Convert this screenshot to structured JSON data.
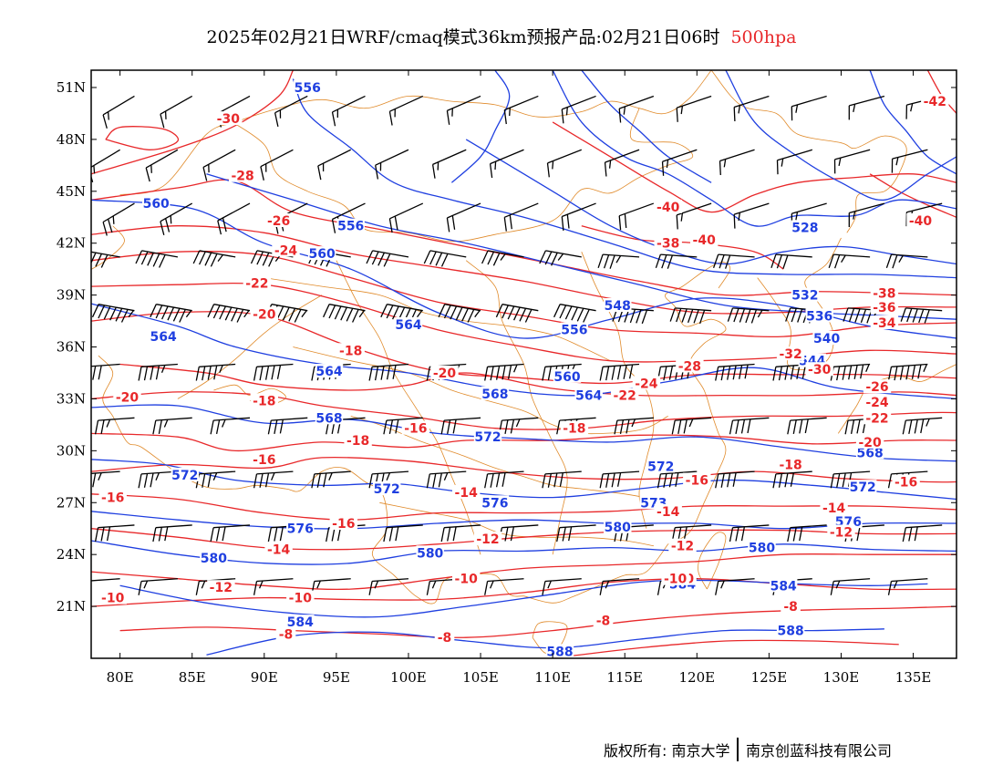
{
  "title": {
    "text": "2025年02月21日WRF/cmaq模式36km预报产品:02月21日06时",
    "level": "500hpa",
    "level_color": "#e8282a"
  },
  "axes": {
    "lat_labels": [
      "51N",
      "48N",
      "45N",
      "42N",
      "39N",
      "36N",
      "33N",
      "30N",
      "27N",
      "24N",
      "21N"
    ],
    "lat_values": [
      51,
      48,
      45,
      42,
      39,
      36,
      33,
      30,
      27,
      24,
      21
    ],
    "lon_labels": [
      "80E",
      "85E",
      "90E",
      "95E",
      "100E",
      "105E",
      "110E",
      "115E",
      "120E",
      "125E",
      "130E",
      "135E"
    ],
    "lon_values": [
      80,
      85,
      90,
      95,
      100,
      105,
      110,
      115,
      120,
      125,
      130,
      135
    ],
    "lon_range": [
      78,
      138
    ],
    "lat_range": [
      18,
      52
    ]
  },
  "colors": {
    "height_contour": "#1f3fe0",
    "temperature_contour": "#e8282a",
    "coastline_border": "#e08a2a",
    "wind_barb": "#000000"
  },
  "height_labels": [
    {
      "text": "556",
      "lon": 93,
      "lat": 51
    },
    {
      "text": "560",
      "lon": 82.5,
      "lat": 44.3
    },
    {
      "text": "556",
      "lon": 96,
      "lat": 43
    },
    {
      "text": "560",
      "lon": 94,
      "lat": 41.4
    },
    {
      "text": "548",
      "lon": 114.5,
      "lat": 38.4
    },
    {
      "text": "532",
      "lon": 127.5,
      "lat": 39
    },
    {
      "text": "536",
      "lon": 128.5,
      "lat": 37.8
    },
    {
      "text": "528",
      "lon": 127.5,
      "lat": 42.9
    },
    {
      "text": "540",
      "lon": 129,
      "lat": 36.5
    },
    {
      "text": "544",
      "lon": 128,
      "lat": 35.2
    },
    {
      "text": "564",
      "lon": 100,
      "lat": 37.3
    },
    {
      "text": "556",
      "lon": 111.5,
      "lat": 37
    },
    {
      "text": "564",
      "lon": 83,
      "lat": 36.6
    },
    {
      "text": "560",
      "lon": 111,
      "lat": 34.3
    },
    {
      "text": "564",
      "lon": 94.5,
      "lat": 34.6
    },
    {
      "text": "568",
      "lon": 106,
      "lat": 33.3
    },
    {
      "text": "564",
      "lon": 112.5,
      "lat": 33.2
    },
    {
      "text": "568",
      "lon": 94.5,
      "lat": 31.9
    },
    {
      "text": "572",
      "lon": 105.5,
      "lat": 30.8
    },
    {
      "text": "572",
      "lon": 84.5,
      "lat": 28.6
    },
    {
      "text": "572",
      "lon": 98.5,
      "lat": 27.8
    },
    {
      "text": "576",
      "lon": 106,
      "lat": 27
    },
    {
      "text": "572",
      "lon": 117.5,
      "lat": 29.1
    },
    {
      "text": "568",
      "lon": 132,
      "lat": 29.9
    },
    {
      "text": "572",
      "lon": 131.5,
      "lat": 27.9
    },
    {
      "text": "573",
      "lon": 117,
      "lat": 27
    },
    {
      "text": "576",
      "lon": 130.5,
      "lat": 25.9
    },
    {
      "text": "576",
      "lon": 92.5,
      "lat": 25.5
    },
    {
      "text": "580",
      "lon": 114.5,
      "lat": 25.6
    },
    {
      "text": "580",
      "lon": 86.5,
      "lat": 23.8
    },
    {
      "text": "580",
      "lon": 101.5,
      "lat": 24.1
    },
    {
      "text": "580",
      "lon": 124.5,
      "lat": 24.4
    },
    {
      "text": "584",
      "lon": 119,
      "lat": 22.3
    },
    {
      "text": "584",
      "lon": 126,
      "lat": 22.2
    },
    {
      "text": "584",
      "lon": 92.5,
      "lat": 20.1
    },
    {
      "text": "588",
      "lon": 110.5,
      "lat": 18.4
    },
    {
      "text": "588",
      "lon": 126.5,
      "lat": 19.6
    }
  ],
  "temp_labels": [
    {
      "text": "-30",
      "lon": 87.5,
      "lat": 49.2
    },
    {
      "text": "-28",
      "lon": 88.5,
      "lat": 45.9
    },
    {
      "text": "-26",
      "lon": 91,
      "lat": 43.3
    },
    {
      "text": "-24",
      "lon": 91.5,
      "lat": 41.6
    },
    {
      "text": "-22",
      "lon": 89.5,
      "lat": 39.7
    },
    {
      "text": "-20",
      "lon": 90,
      "lat": 37.9
    },
    {
      "text": "-20",
      "lon": 80.5,
      "lat": 33.1
    },
    {
      "text": "-18",
      "lon": 96,
      "lat": 35.8
    },
    {
      "text": "-18",
      "lon": 90,
      "lat": 32.9
    },
    {
      "text": "-18",
      "lon": 96.5,
      "lat": 30.6
    },
    {
      "text": "-16",
      "lon": 90,
      "lat": 29.5
    },
    {
      "text": "-16",
      "lon": 100.5,
      "lat": 31.3
    },
    {
      "text": "-16",
      "lon": 79.5,
      "lat": 27.3
    },
    {
      "text": "-16",
      "lon": 95.5,
      "lat": 25.8
    },
    {
      "text": "-14",
      "lon": 104,
      "lat": 27.6
    },
    {
      "text": "-14",
      "lon": 91,
      "lat": 24.3
    },
    {
      "text": "-12",
      "lon": 87,
      "lat": 22.1
    },
    {
      "text": "-12",
      "lon": 105.5,
      "lat": 24.9
    },
    {
      "text": "-10",
      "lon": 79.5,
      "lat": 21.5
    },
    {
      "text": "-10",
      "lon": 92.5,
      "lat": 21.5
    },
    {
      "text": "-10",
      "lon": 104,
      "lat": 22.6
    },
    {
      "text": "-10",
      "lon": 119,
      "lat": 22.6
    },
    {
      "text": "-8",
      "lon": 91.5,
      "lat": 19.4
    },
    {
      "text": "-8",
      "lon": 102.5,
      "lat": 19.2
    },
    {
      "text": "-8",
      "lon": 113.5,
      "lat": 20.2
    },
    {
      "text": "-10",
      "lon": 118.5,
      "lat": 22.6
    },
    {
      "text": "-20",
      "lon": 102.5,
      "lat": 34.5
    },
    {
      "text": "-18",
      "lon": 111.5,
      "lat": 31.3
    },
    {
      "text": "-16",
      "lon": 120,
      "lat": 28.3
    },
    {
      "text": "-14",
      "lon": 118,
      "lat": 26.5
    },
    {
      "text": "-12",
      "lon": 119,
      "lat": 24.5
    },
    {
      "text": "-40",
      "lon": 118,
      "lat": 44.1
    },
    {
      "text": "-40",
      "lon": 120.5,
      "lat": 42.2
    },
    {
      "text": "-38",
      "lon": 118,
      "lat": 42
    },
    {
      "text": "-40",
      "lon": 135.5,
      "lat": 43.3
    },
    {
      "text": "-42",
      "lon": 136.5,
      "lat": 50.2
    },
    {
      "text": "-38",
      "lon": 133,
      "lat": 39.1
    },
    {
      "text": "-36",
      "lon": 133,
      "lat": 38.3
    },
    {
      "text": "-34",
      "lon": 133,
      "lat": 37.4
    },
    {
      "text": "-32",
      "lon": 126.5,
      "lat": 35.6
    },
    {
      "text": "-30",
      "lon": 128.5,
      "lat": 34.7
    },
    {
      "text": "-28",
      "lon": 119.5,
      "lat": 34.9
    },
    {
      "text": "-26",
      "lon": 132.5,
      "lat": 33.7
    },
    {
      "text": "-24",
      "lon": 116.5,
      "lat": 33.9
    },
    {
      "text": "-24",
      "lon": 132.5,
      "lat": 32.8
    },
    {
      "text": "-22",
      "lon": 115,
      "lat": 33.2
    },
    {
      "text": "-22",
      "lon": 132.5,
      "lat": 31.9
    },
    {
      "text": "-20",
      "lon": 132,
      "lat": 30.5
    },
    {
      "text": "-18",
      "lon": 126.5,
      "lat": 29.2
    },
    {
      "text": "-16",
      "lon": 134.5,
      "lat": 28.2
    },
    {
      "text": "-14",
      "lon": 129.5,
      "lat": 26.7
    },
    {
      "text": "-12",
      "lon": 130,
      "lat": 25.3
    },
    {
      "text": "-8",
      "lon": 126.5,
      "lat": 21
    }
  ],
  "footer": {
    "left": "版权所有: 南京大学",
    "right": "南京创蓝科技有限公司"
  }
}
